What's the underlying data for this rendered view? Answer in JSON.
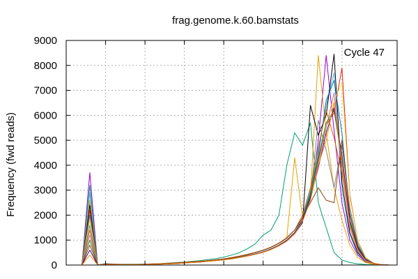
{
  "chart_data": {
    "type": "line",
    "title": "frag.genome.k.60.bamstats",
    "xlabel": "",
    "ylabel": "Frequency (fwd reads)",
    "annotation": "Cycle 47",
    "ylim": [
      0,
      9000
    ],
    "yticks": [
      0,
      1000,
      2000,
      3000,
      4000,
      5000,
      6000,
      7000,
      8000,
      9000
    ],
    "xlim": [
      0,
      42
    ],
    "x_gridlines": [
      5,
      10,
      15,
      20,
      25,
      30,
      35
    ],
    "grid": true,
    "x": [
      1,
      2,
      3,
      4,
      5,
      6,
      7,
      8,
      9,
      10,
      11,
      12,
      13,
      14,
      15,
      16,
      17,
      18,
      19,
      20,
      21,
      22,
      23,
      24,
      25,
      26,
      27,
      28,
      29,
      30,
      31,
      32,
      33,
      34,
      35,
      36,
      37,
      38,
      39,
      40,
      41
    ],
    "series": [
      {
        "color": "#9400d3",
        "values": [
          0,
          0,
          3700,
          0,
          40,
          30,
          20,
          20,
          20,
          30,
          40,
          50,
          60,
          80,
          100,
          120,
          140,
          170,
          200,
          230,
          270,
          320,
          380,
          450,
          530,
          650,
          800,
          1000,
          1300,
          1800,
          2600,
          5000,
          8400,
          5400,
          2500,
          1000,
          400,
          120,
          40,
          10,
          0
        ]
      },
      {
        "color": "#009e73",
        "values": [
          0,
          0,
          3200,
          0,
          60,
          40,
          30,
          30,
          30,
          40,
          50,
          60,
          80,
          100,
          120,
          150,
          180,
          220,
          260,
          320,
          400,
          500,
          650,
          850,
          1200,
          1400,
          2000,
          4000,
          5300,
          4800,
          5700,
          2500,
          1500,
          500,
          200,
          100,
          50,
          20,
          10,
          5,
          0
        ]
      },
      {
        "color": "#56b4e9",
        "values": [
          0,
          0,
          2900,
          0,
          35,
          25,
          20,
          20,
          20,
          25,
          35,
          45,
          55,
          70,
          90,
          110,
          130,
          160,
          190,
          220,
          260,
          310,
          370,
          440,
          520,
          640,
          790,
          1000,
          1300,
          1900,
          3000,
          4600,
          6400,
          7700,
          3000,
          1200,
          450,
          140,
          40,
          10,
          0
        ]
      },
      {
        "color": "#e69f00",
        "values": [
          0,
          0,
          2600,
          0,
          45,
          35,
          25,
          25,
          25,
          35,
          45,
          55,
          70,
          90,
          110,
          130,
          150,
          180,
          210,
          250,
          300,
          360,
          430,
          510,
          600,
          720,
          880,
          1100,
          4300,
          1900,
          2800,
          8400,
          5300,
          3100,
          1800,
          800,
          300,
          100,
          30,
          10,
          0
        ]
      },
      {
        "color": "#000000",
        "values": [
          0,
          0,
          2400,
          0,
          30,
          20,
          15,
          15,
          15,
          20,
          30,
          40,
          50,
          60,
          80,
          100,
          120,
          150,
          180,
          210,
          250,
          300,
          360,
          430,
          510,
          620,
          770,
          960,
          1250,
          1700,
          6400,
          5200,
          6000,
          8450,
          3300,
          1300,
          500,
          150,
          45,
          10,
          0
        ]
      },
      {
        "color": "#e51e10",
        "values": [
          0,
          0,
          2200,
          0,
          35,
          25,
          20,
          20,
          20,
          25,
          35,
          45,
          55,
          70,
          90,
          110,
          130,
          160,
          190,
          220,
          260,
          310,
          370,
          440,
          520,
          640,
          790,
          990,
          1300,
          1800,
          2700,
          4200,
          5600,
          6100,
          7900,
          2800,
          1000,
          300,
          80,
          20,
          0
        ]
      },
      {
        "color": "#0072b2",
        "values": [
          0,
          0,
          2000,
          0,
          40,
          30,
          25,
          25,
          25,
          30,
          40,
          50,
          65,
          80,
          100,
          120,
          140,
          170,
          200,
          240,
          290,
          350,
          420,
          500,
          590,
          710,
          870,
          1080,
          1400,
          1900,
          2900,
          4400,
          6600,
          7400,
          5300,
          2100,
          800,
          240,
          70,
          15,
          0
        ]
      },
      {
        "color": "#f0e442",
        "values": [
          0,
          0,
          1800,
          0,
          30,
          20,
          15,
          15,
          15,
          20,
          30,
          40,
          50,
          65,
          85,
          105,
          125,
          155,
          185,
          215,
          255,
          305,
          365,
          435,
          515,
          635,
          785,
          985,
          1290,
          1800,
          2700,
          4000,
          5600,
          6600,
          7300,
          2700,
          1000,
          300,
          80,
          20,
          0
        ]
      },
      {
        "color": "#808080",
        "values": [
          0,
          0,
          1600,
          0,
          40,
          30,
          20,
          20,
          20,
          30,
          40,
          50,
          60,
          80,
          100,
          120,
          140,
          170,
          200,
          230,
          270,
          320,
          380,
          450,
          530,
          650,
          800,
          1000,
          1300,
          1800,
          2700,
          5800,
          4600,
          3100,
          4800,
          2300,
          900,
          270,
          70,
          15,
          0
        ]
      },
      {
        "color": "#d55e00",
        "values": [
          0,
          0,
          1400,
          0,
          45,
          35,
          25,
          25,
          25,
          35,
          45,
          55,
          70,
          90,
          110,
          130,
          150,
          180,
          210,
          250,
          300,
          360,
          430,
          510,
          600,
          720,
          880,
          1100,
          1400,
          2000,
          3100,
          4700,
          6200,
          5100,
          3700,
          1600,
          600,
          180,
          50,
          10,
          0
        ]
      },
      {
        "color": "#cc79a7",
        "values": [
          0,
          0,
          1200,
          0,
          30,
          20,
          15,
          15,
          15,
          20,
          30,
          40,
          50,
          60,
          80,
          100,
          120,
          150,
          180,
          210,
          250,
          300,
          360,
          430,
          510,
          620,
          770,
          960,
          1250,
          1750,
          2600,
          4100,
          5500,
          6900,
          3900,
          1500,
          550,
          160,
          45,
          10,
          0
        ]
      },
      {
        "color": "#228b22",
        "values": [
          0,
          0,
          1000,
          0,
          35,
          25,
          20,
          20,
          20,
          25,
          35,
          45,
          55,
          70,
          90,
          110,
          130,
          160,
          190,
          220,
          260,
          310,
          370,
          440,
          520,
          640,
          790,
          990,
          1300,
          1800,
          2800,
          4300,
          5700,
          6200,
          4200,
          1700,
          650,
          200,
          55,
          12,
          0
        ]
      },
      {
        "color": "#8b4513",
        "values": [
          0,
          0,
          800,
          0,
          40,
          30,
          25,
          25,
          25,
          30,
          40,
          50,
          65,
          80,
          100,
          120,
          140,
          170,
          200,
          240,
          290,
          350,
          420,
          500,
          590,
          710,
          870,
          1080,
          1400,
          1900,
          2500,
          3100,
          2600,
          2500,
          5000,
          2000,
          750,
          220,
          60,
          15,
          0
        ]
      },
      {
        "color": "#4b0082",
        "values": [
          0,
          0,
          600,
          0,
          30,
          20,
          15,
          15,
          15,
          20,
          30,
          40,
          50,
          65,
          85,
          105,
          125,
          155,
          185,
          215,
          255,
          305,
          365,
          435,
          515,
          635,
          785,
          985,
          1290,
          1800,
          2700,
          3900,
          5300,
          6300,
          4400,
          1800,
          700,
          210,
          55,
          12,
          0
        ]
      },
      {
        "color": "#ff8c00",
        "values": [
          0,
          0,
          400,
          0,
          25,
          20,
          15,
          15,
          15,
          20,
          25,
          35,
          45,
          60,
          80,
          100,
          120,
          150,
          180,
          210,
          250,
          300,
          360,
          430,
          510,
          620,
          770,
          960,
          1250,
          1750,
          2600,
          4000,
          5000,
          6500,
          4100,
          1600,
          600,
          180,
          50,
          10,
          0
        ]
      }
    ]
  }
}
